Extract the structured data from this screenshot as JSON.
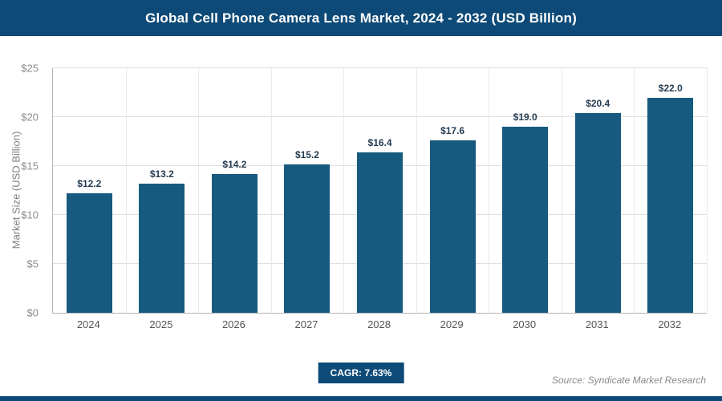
{
  "header": {
    "title": "Global Cell Phone Camera Lens Market, 2024 - 2032 (USD Billion)"
  },
  "footer": {
    "cagr_label": "CAGR: 7.63%",
    "source": "Source: Syndicate Market Research"
  },
  "colors": {
    "header_bg": "#0d4a77",
    "accent_strip": "#0d4a77",
    "bar": "#165a7f"
  },
  "chart_data": {
    "type": "bar",
    "title": "Global Cell Phone Camera Lens Market, 2024 - 2032 (USD Billion)",
    "categories": [
      "2024",
      "2025",
      "2026",
      "2027",
      "2028",
      "2029",
      "2030",
      "2031",
      "2032"
    ],
    "values": [
      12.2,
      13.2,
      14.2,
      15.2,
      16.4,
      17.6,
      19.0,
      20.4,
      22.0
    ],
    "value_labels": [
      "$12.2",
      "$13.2",
      "$14.2",
      "$15.2",
      "$16.4",
      "$17.6",
      "$19.0",
      "$20.4",
      "$22.0"
    ],
    "xlabel": "",
    "ylabel": "Market Size (USD Billion)",
    "ylim": [
      0,
      25
    ],
    "yticks": [
      0,
      5,
      10,
      15,
      20,
      25
    ],
    "ytick_labels": [
      "$0",
      "$5",
      "$10",
      "$15",
      "$20",
      "$25"
    ],
    "grid": true,
    "legend": "none",
    "bar_color": "#165a7f"
  }
}
